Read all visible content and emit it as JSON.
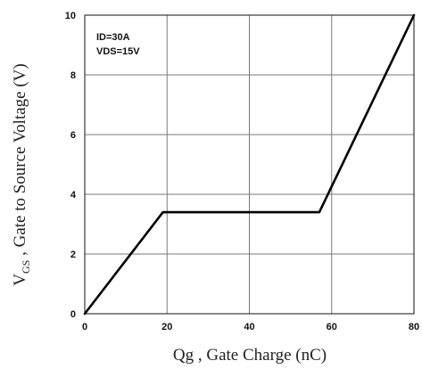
{
  "chart_data": {
    "type": "line",
    "xlabel": "Qg , Gate Charge (nC)",
    "ylabel_main": "V",
    "ylabel_sub": "GS",
    "ylabel_rest": " , Gate to Source Voltage (V)",
    "xlim": [
      0,
      80
    ],
    "ylim": [
      0,
      10
    ],
    "xticks": [
      0,
      20,
      40,
      60,
      80
    ],
    "yticks": [
      0,
      2,
      4,
      6,
      8,
      10
    ],
    "grid": true,
    "annotations": [
      "ID=30A",
      "VDS=15V"
    ],
    "series": [
      {
        "x": [
          0,
          19,
          57,
          80
        ],
        "y": [
          0,
          3.4,
          3.4,
          10
        ]
      }
    ],
    "line_color": "#000000",
    "grid_color": "#7a7a7a"
  }
}
